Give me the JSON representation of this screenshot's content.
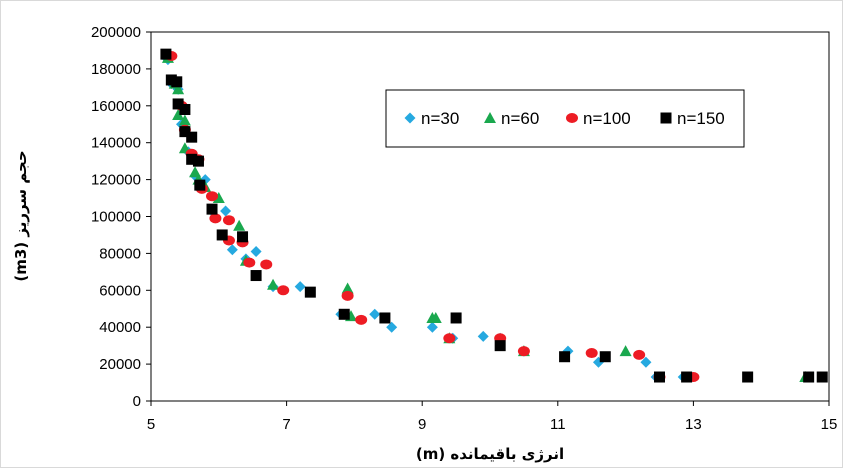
{
  "chart_data": {
    "type": "scatter",
    "title": "",
    "xlabel": "انرژی باقیمانده (m)",
    "ylabel": "حجم سرریز (m3)",
    "xlim": [
      5,
      15
    ],
    "ylim": [
      0,
      200000
    ],
    "x_ticks": [
      5,
      7,
      9,
      11,
      13,
      15
    ],
    "x_tick_labels": [
      "5",
      "7",
      "9",
      "11",
      "13",
      "15"
    ],
    "y_ticks": [
      0,
      20000,
      40000,
      60000,
      80000,
      100000,
      120000,
      140000,
      160000,
      180000,
      200000
    ],
    "y_tick_labels": [
      "0",
      "20000",
      "40000",
      "60000",
      "80000",
      "100000",
      "120000",
      "140000",
      "160000",
      "180000",
      "200000"
    ],
    "grid": false,
    "legend": {
      "placement": "top-right",
      "boxed": true
    },
    "series": [
      {
        "name": "n=30",
        "marker": "diamond",
        "color": "#26a9e0",
        "points": [
          [
            5.25,
            185000
          ],
          [
            5.3,
            172000
          ],
          [
            5.4,
            169000
          ],
          [
            5.45,
            150000
          ],
          [
            5.55,
            135000
          ],
          [
            5.65,
            122000
          ],
          [
            5.8,
            120000
          ],
          [
            5.9,
            103000
          ],
          [
            6.1,
            103000
          ],
          [
            6.2,
            82000
          ],
          [
            6.4,
            77000
          ],
          [
            6.55,
            81000
          ],
          [
            6.8,
            62000
          ],
          [
            7.2,
            62000
          ],
          [
            7.8,
            47000
          ],
          [
            8.3,
            47000
          ],
          [
            8.55,
            40000
          ],
          [
            9.15,
            40000
          ],
          [
            9.45,
            34000
          ],
          [
            9.9,
            35000
          ],
          [
            10.15,
            34000
          ],
          [
            10.5,
            27000
          ],
          [
            11.15,
            27000
          ],
          [
            11.6,
            21000
          ],
          [
            12.3,
            21000
          ],
          [
            12.45,
            13000
          ],
          [
            12.85,
            13000
          ],
          [
            14.7,
            13000
          ]
        ]
      },
      {
        "name": "n=60",
        "marker": "triangle",
        "color": "#1aa84e",
        "points": [
          [
            5.25,
            186000
          ],
          [
            5.35,
            172000
          ],
          [
            5.4,
            169000
          ],
          [
            5.4,
            155000
          ],
          [
            5.5,
            152000
          ],
          [
            5.5,
            137000
          ],
          [
            5.65,
            124000
          ],
          [
            5.7,
            120000
          ],
          [
            5.8,
            116000
          ],
          [
            6.0,
            110000
          ],
          [
            6.3,
            95000
          ],
          [
            6.4,
            76000
          ],
          [
            6.8,
            63000
          ],
          [
            7.9,
            61000
          ],
          [
            7.95,
            46000
          ],
          [
            9.15,
            45000
          ],
          [
            9.2,
            45000
          ],
          [
            9.4,
            34000
          ],
          [
            10.5,
            27000
          ],
          [
            12.0,
            27000
          ],
          [
            14.65,
            13000
          ]
        ]
      },
      {
        "name": "n=100",
        "marker": "circle",
        "color": "#ed1c24",
        "points": [
          [
            5.3,
            187000
          ],
          [
            5.45,
            160000
          ],
          [
            5.5,
            147000
          ],
          [
            5.6,
            134000
          ],
          [
            5.7,
            131000
          ],
          [
            5.75,
            115000
          ],
          [
            5.9,
            111000
          ],
          [
            5.95,
            99000
          ],
          [
            6.15,
            98000
          ],
          [
            6.15,
            87000
          ],
          [
            6.35,
            86000
          ],
          [
            6.45,
            75000
          ],
          [
            6.7,
            74000
          ],
          [
            6.95,
            60000
          ],
          [
            7.9,
            57000
          ],
          [
            8.1,
            44000
          ],
          [
            9.4,
            34000
          ],
          [
            10.15,
            34000
          ],
          [
            10.5,
            27000
          ],
          [
            11.5,
            26000
          ],
          [
            12.2,
            25000
          ],
          [
            12.5,
            13000
          ],
          [
            13.0,
            13000
          ]
        ]
      },
      {
        "name": "n=150",
        "marker": "square",
        "color": "#000000",
        "points": [
          [
            5.22,
            188000
          ],
          [
            5.3,
            174000
          ],
          [
            5.38,
            173000
          ],
          [
            5.4,
            161000
          ],
          [
            5.5,
            158000
          ],
          [
            5.5,
            146000
          ],
          [
            5.6,
            143000
          ],
          [
            5.6,
            131000
          ],
          [
            5.7,
            130000
          ],
          [
            5.72,
            117000
          ],
          [
            5.9,
            104000
          ],
          [
            6.05,
            90000
          ],
          [
            6.35,
            89000
          ],
          [
            6.55,
            68000
          ],
          [
            7.35,
            59000
          ],
          [
            7.85,
            47000
          ],
          [
            8.45,
            45000
          ],
          [
            9.5,
            45000
          ],
          [
            10.15,
            30000
          ],
          [
            11.1,
            24000
          ],
          [
            11.7,
            24000
          ],
          [
            12.5,
            13000
          ],
          [
            12.9,
            13000
          ],
          [
            13.8,
            13000
          ],
          [
            14.7,
            13000
          ],
          [
            14.9,
            13000
          ]
        ]
      }
    ]
  }
}
